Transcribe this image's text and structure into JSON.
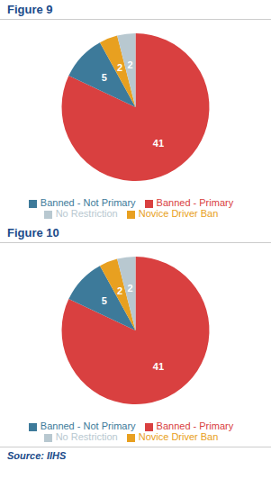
{
  "chart_data": [
    {
      "type": "pie",
      "title": "Figure 9",
      "categories": [
        "Banned - Primary",
        "Banned - Not Primary",
        "Novice Driver Ban",
        "No Restriction"
      ],
      "values": [
        41,
        5,
        2,
        2
      ],
      "colors": [
        "#d94040",
        "#3d7a9a",
        "#e8a020",
        "#b8c8d0"
      ],
      "data_labels": true
    },
    {
      "type": "pie",
      "title": "Figure 10",
      "categories": [
        "Banned - Primary",
        "Banned - Not Primary",
        "Novice Driver Ban",
        "No Restriction"
      ],
      "values": [
        41,
        5,
        2,
        2
      ],
      "colors": [
        "#d94040",
        "#3d7a9a",
        "#e8a020",
        "#b8c8d0"
      ],
      "data_labels": true,
      "annotations": [
        "Source: IIHS"
      ]
    }
  ]
}
